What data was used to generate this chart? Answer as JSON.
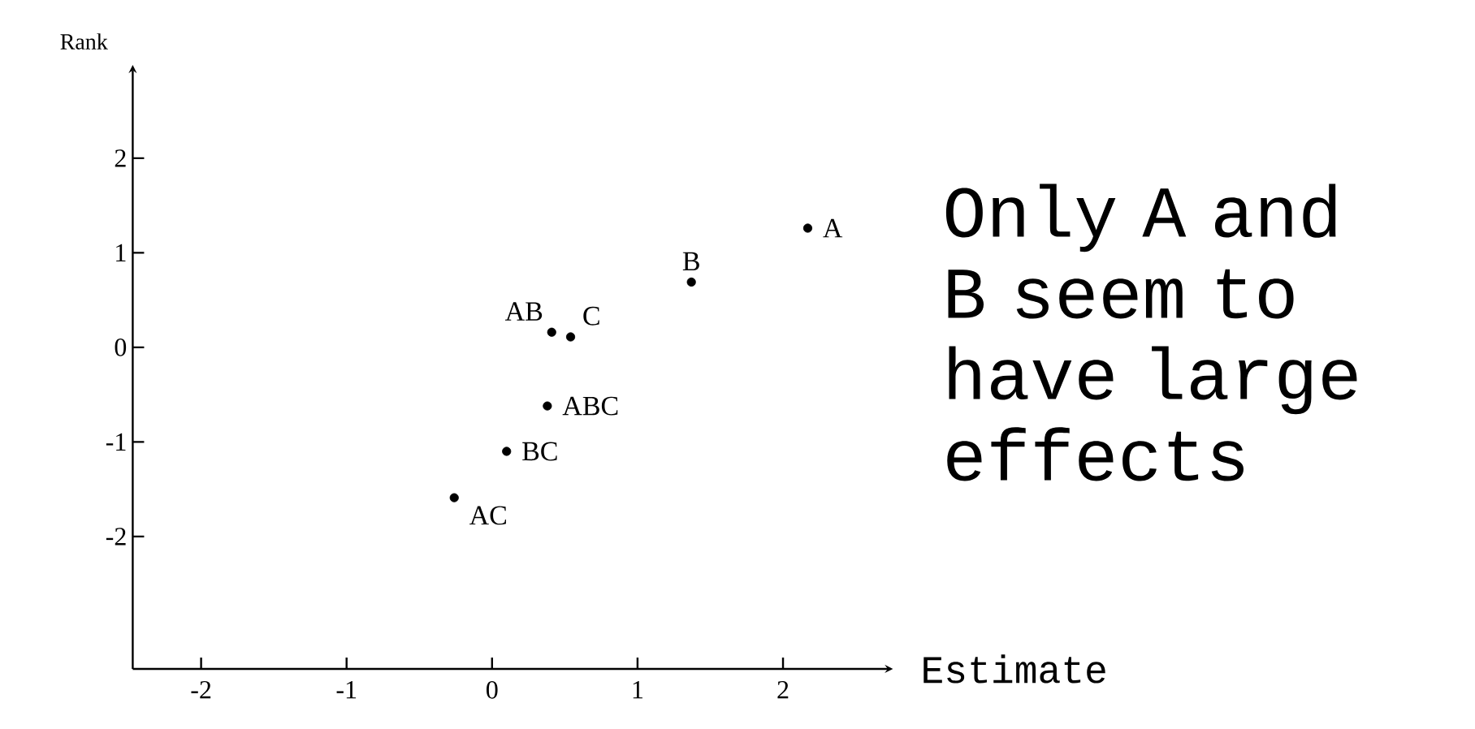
{
  "chart_data": {
    "type": "scatter",
    "xlabel": "Estimate",
    "ylabel": "Rank",
    "series": [
      {
        "color": "#000000",
        "x": [
          2.17,
          1.37,
          0.41,
          0.54,
          0.38,
          0.1,
          -0.26
        ],
        "values": [
          1.26,
          0.69,
          0.16,
          0.11,
          -0.62,
          -1.1,
          -1.59
        ]
      }
    ],
    "xlim": [
      -2.47,
      2.7
    ],
    "ylim": [
      -3.4,
      2.9
    ],
    "xticks": [
      -2,
      -1,
      0,
      1,
      2
    ],
    "yticks": [
      -2,
      -1,
      0,
      1,
      2
    ],
    "annotations": [
      {
        "text": "A",
        "x": 2.17,
        "y": 1.26
      },
      {
        "text": "B",
        "x": 1.37,
        "y": 0.69
      },
      {
        "text": "AB",
        "x": 0.41,
        "y": 0.16
      },
      {
        "text": "C",
        "x": 0.54,
        "y": 0.11
      },
      {
        "text": "ABC",
        "x": 0.38,
        "y": -0.62
      },
      {
        "text": "BC",
        "x": 0.1,
        "y": -1.1
      },
      {
        "text": "AC",
        "x": -0.26,
        "y": -1.59
      },
      "Only A and B seem to have large effects"
    ]
  }
}
